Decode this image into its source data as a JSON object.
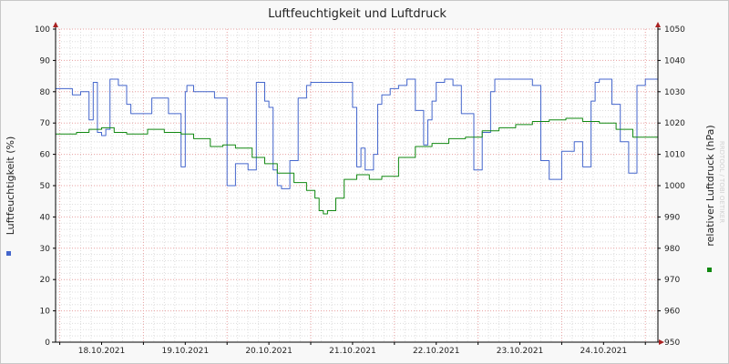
{
  "chart_data": {
    "type": "line",
    "title": "Luftfeuchtigkeit und Luftdruck",
    "watermark": "RRDTOOL / TOBI OETIKER",
    "ylabel_left": "Luftfeuchtigkeit (%)",
    "ylabel_right": "relativer Luftdruck (hPa)",
    "ylim_left": [
      0,
      100
    ],
    "ylim_right": [
      950,
      1050
    ],
    "yticks_left": [
      0,
      10,
      20,
      30,
      40,
      50,
      60,
      70,
      80,
      90,
      100
    ],
    "yticks_right": [
      950,
      960,
      970,
      980,
      990,
      1000,
      1010,
      1020,
      1030,
      1040,
      1050
    ],
    "x_dates": [
      "18.10.2021",
      "19.10.2021",
      "20.10.2021",
      "21.10.2021",
      "22.10.2021",
      "23.10.2021",
      "24.10.2021"
    ],
    "xlim_days": [
      -0.55,
      6.65
    ],
    "grid": true,
    "colors": {
      "humidity": "#4466cc",
      "pressure": "#118811",
      "major_grid": "#e8a0a0",
      "minor_grid": "#dddddd"
    },
    "series": [
      {
        "axis": "left",
        "x": [
          -0.55,
          -0.35,
          -0.25,
          -0.15,
          -0.1,
          -0.05,
          0.0,
          0.05,
          0.1,
          0.2,
          0.3,
          0.35,
          0.45,
          0.6,
          0.8,
          0.95,
          1.0,
          1.02,
          1.05,
          1.1,
          1.15,
          1.25,
          1.35,
          1.5,
          1.6,
          1.75,
          1.85,
          1.95,
          2.0,
          2.05,
          2.1,
          2.15,
          2.25,
          2.35,
          2.45,
          2.5,
          2.55,
          2.6,
          2.7,
          2.8,
          2.9,
          3.0,
          3.05,
          3.1,
          3.15,
          3.25,
          3.3,
          3.35,
          3.45,
          3.55,
          3.65,
          3.75,
          3.85,
          3.9,
          3.95,
          4.0,
          4.05,
          4.1,
          4.2,
          4.3,
          4.45,
          4.55,
          4.65,
          4.7,
          4.75,
          4.8,
          4.85,
          4.95,
          5.05,
          5.1,
          5.15,
          5.25,
          5.35,
          5.5,
          5.65,
          5.75,
          5.85,
          5.9,
          5.95,
          6.0,
          6.05,
          6.1,
          6.2,
          6.3,
          6.4,
          6.5,
          6.65
        ],
        "values": [
          81,
          79,
          80,
          71,
          83,
          67,
          66,
          68,
          84,
          82,
          76,
          73,
          73,
          78,
          73,
          56,
          80,
          82,
          82,
          80,
          80,
          80,
          78,
          50,
          57,
          55,
          83,
          77,
          75,
          55,
          50,
          49,
          58,
          78,
          82,
          83,
          83,
          83,
          83,
          83,
          83,
          75,
          56,
          62,
          55,
          60,
          76,
          79,
          81,
          82,
          84,
          74,
          63,
          71,
          77,
          83,
          83,
          84,
          82,
          73,
          55,
          67,
          80,
          84,
          84,
          84,
          84,
          84,
          84,
          84,
          82,
          58,
          52,
          61,
          64,
          56,
          77,
          83,
          84,
          84,
          84,
          76,
          64,
          54,
          82,
          84,
          84
        ]
      },
      {
        "axis": "right",
        "x": [
          -0.55,
          -0.3,
          -0.15,
          0.0,
          0.15,
          0.3,
          0.55,
          0.75,
          0.95,
          1.1,
          1.3,
          1.45,
          1.6,
          1.8,
          1.95,
          2.1,
          2.3,
          2.45,
          2.55,
          2.6,
          2.65,
          2.7,
          2.8,
          2.9,
          3.05,
          3.2,
          3.35,
          3.55,
          3.75,
          3.95,
          4.15,
          4.35,
          4.55,
          4.75,
          4.95,
          5.15,
          5.35,
          5.55,
          5.75,
          5.95,
          6.15,
          6.35,
          6.65
        ],
        "values": [
          1016.5,
          1017,
          1018,
          1018.5,
          1017,
          1016.5,
          1018,
          1017,
          1016.5,
          1015,
          1012.5,
          1013,
          1012,
          1009,
          1007,
          1004,
          1001,
          998.5,
          996,
          992,
          991,
          992,
          996,
          1002,
          1003.5,
          1002,
          1003,
          1009,
          1012.5,
          1013.5,
          1015,
          1015.5,
          1017.5,
          1018.5,
          1019.5,
          1020.5,
          1021,
          1021.5,
          1020.5,
          1020,
          1018,
          1015.5,
          1016
        ]
      }
    ]
  }
}
